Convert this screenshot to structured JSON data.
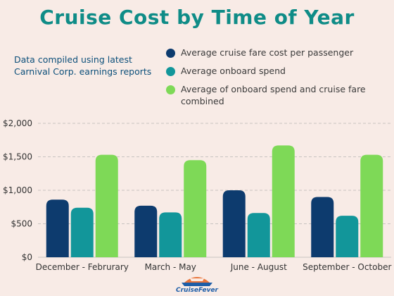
{
  "title": "Cruise Cost by Time of Year",
  "note": "Data compiled using latest Carnival Corp. earnings reports",
  "logo": {
    "text": "CruiseFever"
  },
  "colors": {
    "title": "#0f8c87",
    "series": [
      "#0d3b6e",
      "#12969a",
      "#7ed957"
    ],
    "grid": "#c8c3c0",
    "axis_text": "#333333"
  },
  "chart_data": {
    "type": "bar",
    "title": "Cruise Cost by Time of Year",
    "categories": [
      "December - Februrary",
      "March - May",
      "June - August",
      "September - October"
    ],
    "series": [
      {
        "name": "Average cruise fare cost per passenger",
        "values": [
          860,
          770,
          1000,
          900
        ]
      },
      {
        "name": "Average onboard spend",
        "values": [
          740,
          670,
          660,
          620
        ]
      },
      {
        "name": "Average of onboard spend and cruise fare combined",
        "values": [
          1530,
          1450,
          1670,
          1530
        ]
      }
    ],
    "yticks": [
      "$0",
      "$500",
      "$1,000",
      "$1,500",
      "$2,000"
    ],
    "ylim": [
      0,
      2000
    ],
    "grid": true,
    "legend_position": "top-right"
  }
}
